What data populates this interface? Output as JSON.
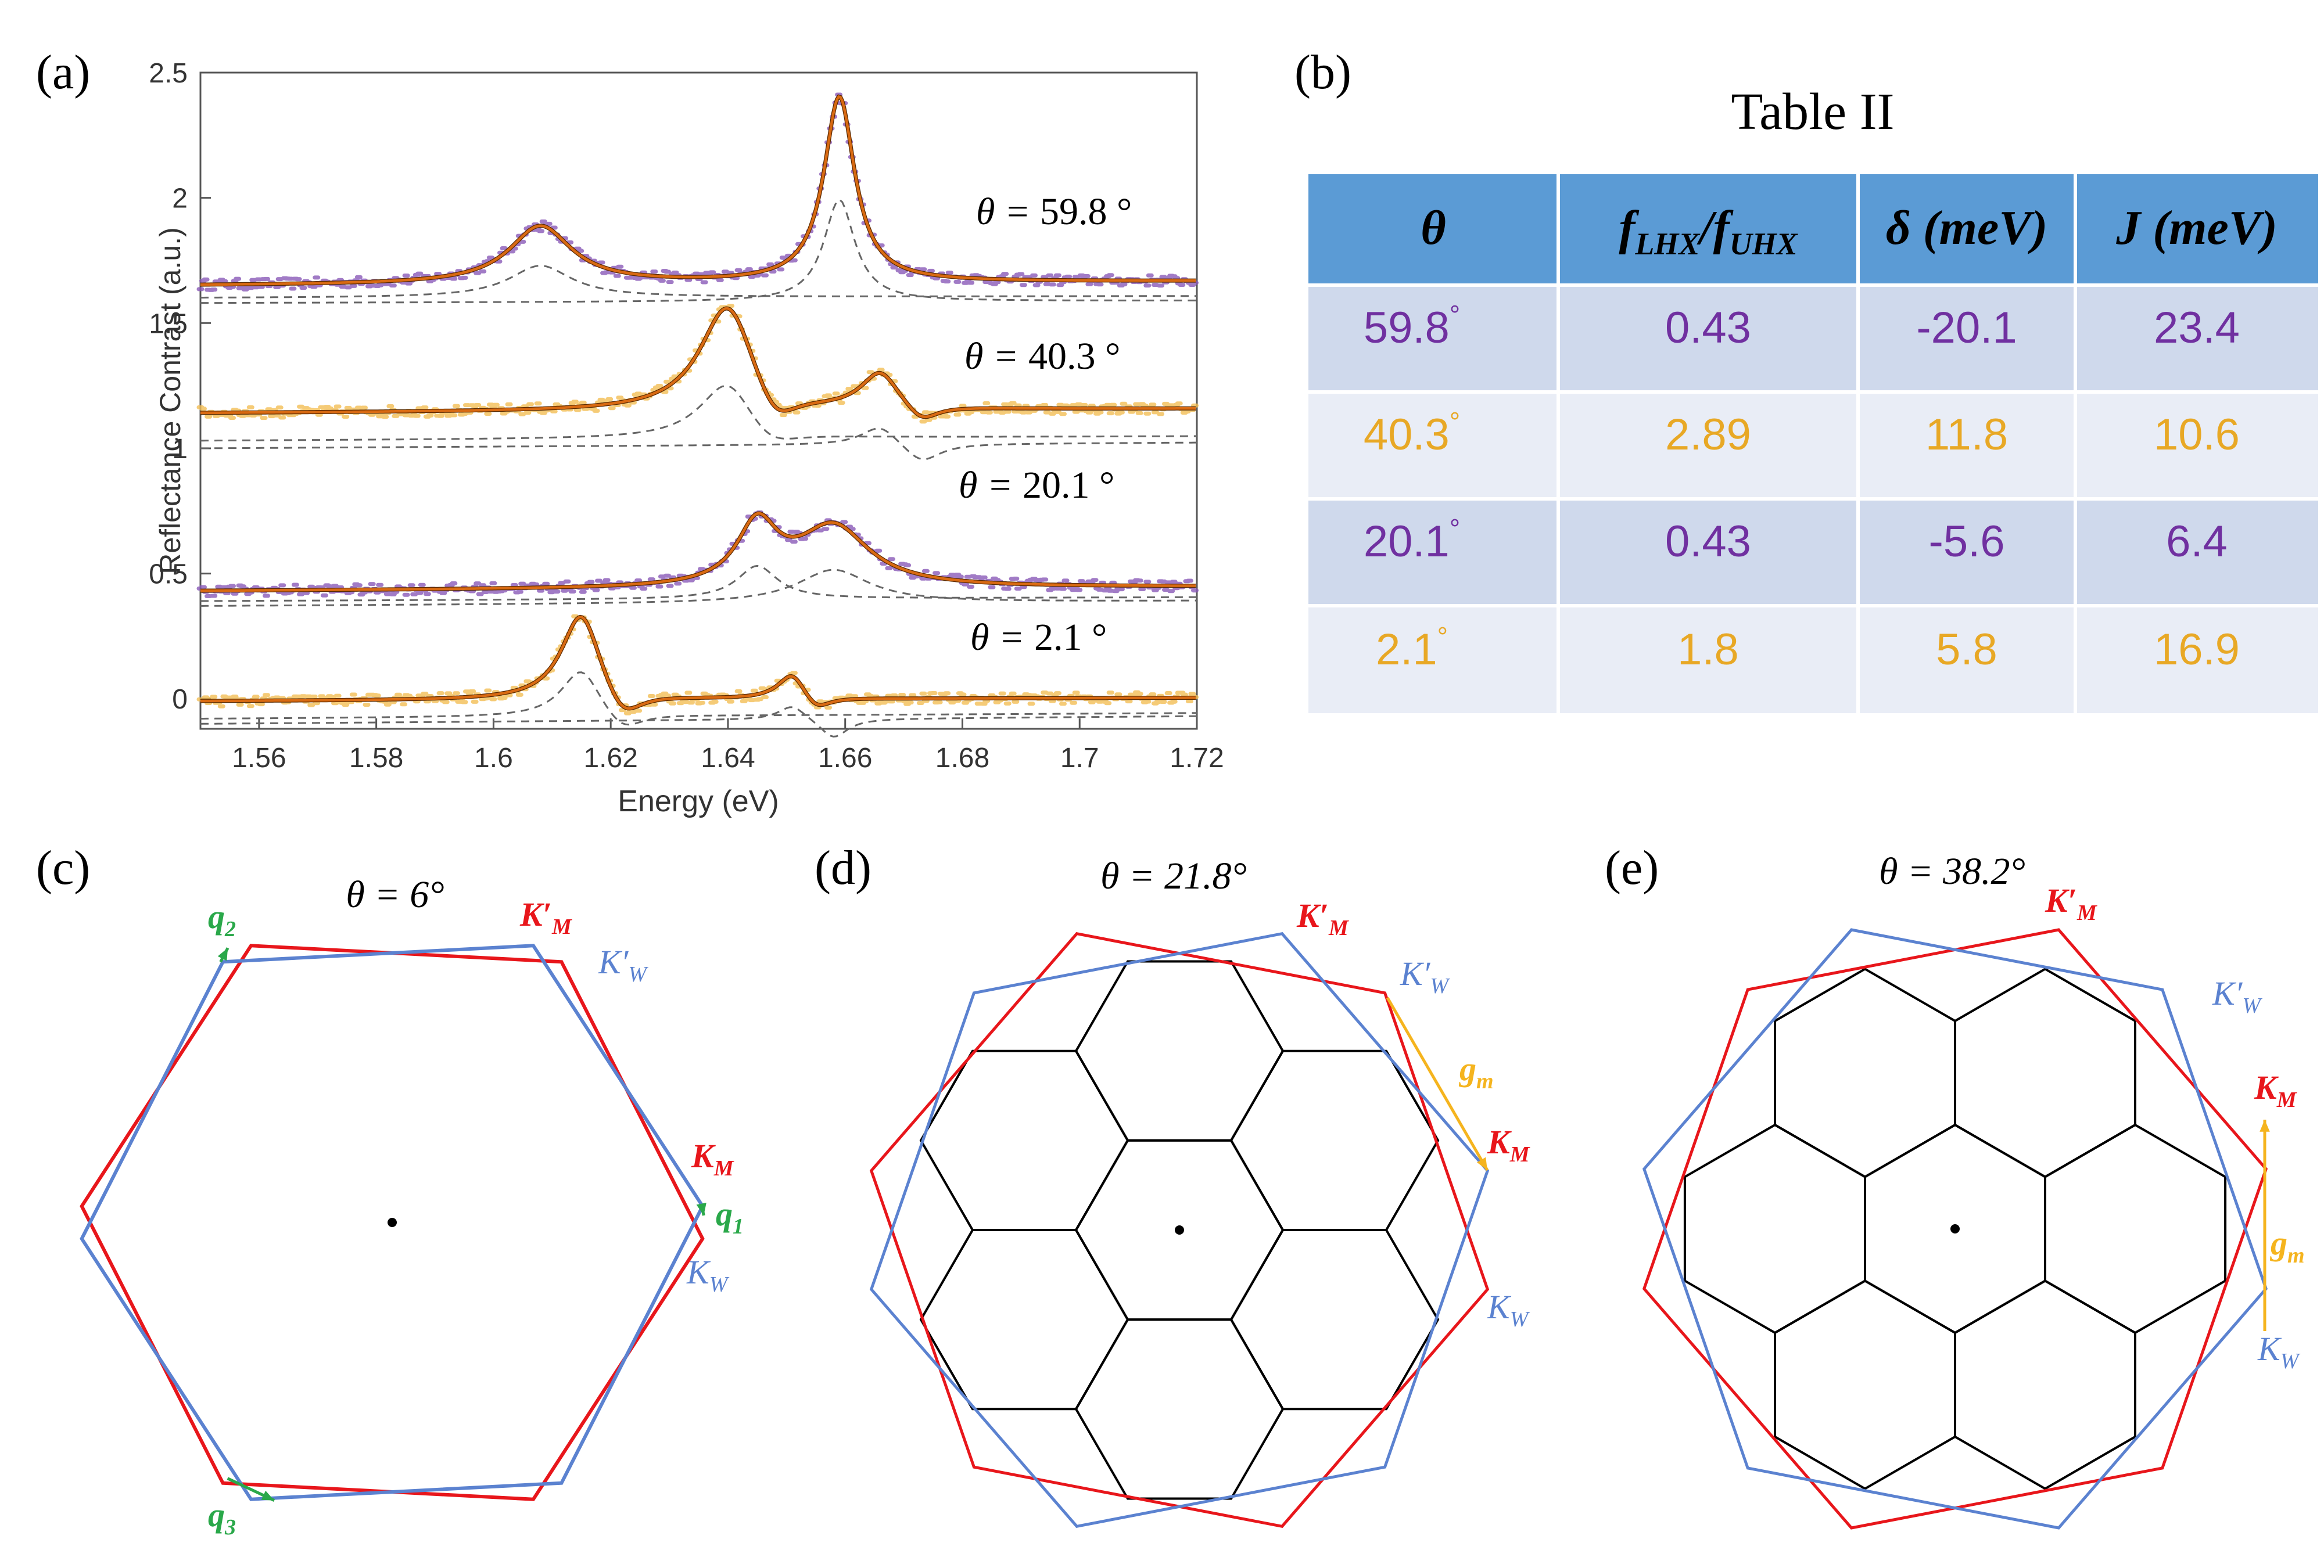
{
  "colors": {
    "purple": "#7030A0",
    "orange_text": "#E8A825",
    "purple_dots": "#8A5AB8",
    "orange_dots": "#F2BE55",
    "fit": "#D96A12",
    "dashed": "#666666",
    "red": "#E8161B",
    "blue": "#5B82D0",
    "green": "#2AA84A",
    "yellow": "#F5B41E",
    "table_head": "#5B9BD5",
    "table_dark": "#CFD9EC",
    "table_light": "#E9EDF6"
  },
  "panel_a": {
    "label": "(a)",
    "xlabel": "Energy (eV)",
    "ylabel": "Reflectance Contrast (a.u.)",
    "angle_prefix": "θ = ",
    "curve_labels": [
      "59.8 °",
      "40.3 °",
      "20.1 °",
      "2.1 °"
    ]
  },
  "chart_data": {
    "type": "line",
    "title": "",
    "xlabel": "Energy (eV)",
    "ylabel": "Reflectance Contrast (a.u.)",
    "xlim": [
      1.55,
      1.72
    ],
    "ylim": [
      -0.12,
      2.5
    ],
    "xticks": [
      1.56,
      1.58,
      1.6,
      1.62,
      1.64,
      1.66,
      1.68,
      1.7,
      1.72
    ],
    "xtick_labels": [
      "1.56",
      "1.58",
      "1.6",
      "1.62",
      "1.64",
      "1.66",
      "1.68",
      "1.7",
      "1.72"
    ],
    "yticks": [
      0,
      0.5,
      1,
      1.5,
      2,
      2.5
    ],
    "ytick_labels": [
      "0",
      "0.5",
      "1",
      "1.5",
      "2",
      "2.5"
    ],
    "series": [
      {
        "name": "θ = 59.8°",
        "dots": "purple",
        "base": 1.65,
        "slope": 0.1,
        "peaks": [
          [
            1.608,
            0.23,
            0.0065
          ],
          [
            1.659,
            0.74,
            0.0032
          ]
        ],
        "guides": [
          {
            "offset": -0.05,
            "slope": 0.15
          },
          {
            "offset": -0.07,
            "slope": 0.18
          }
        ]
      },
      {
        "name": "θ = 40.3°",
        "dots": "orange",
        "base": 1.14,
        "slope": 0.1,
        "peaks": [
          [
            1.64,
            0.44,
            0.0058
          ],
          [
            1.666,
            0.15,
            0.004
          ]
        ],
        "dips": [
          [
            1.648,
            0.14,
            0.0045
          ],
          [
            1.673,
            0.07,
            0.0035
          ]
        ],
        "guides": [
          {
            "offset": -0.11,
            "slope": 0.35
          },
          {
            "offset": -0.14,
            "slope": 0.45
          }
        ]
      },
      {
        "name": "θ = 20.1°",
        "dots": "purple",
        "base": 0.43,
        "slope": 0.1,
        "peaks": [
          [
            1.645,
            0.24,
            0.0042
          ],
          [
            1.658,
            0.24,
            0.0075
          ]
        ],
        "guides": [
          {
            "offset": -0.04,
            "slope": 0.3
          },
          {
            "offset": -0.06,
            "slope": 0.4
          }
        ]
      },
      {
        "name": "θ = 2.1°",
        "dots": "orange",
        "base": -0.01,
        "slope": 0.08,
        "peaks": [
          [
            1.615,
            0.36,
            0.0042
          ],
          [
            1.651,
            0.11,
            0.003
          ]
        ],
        "dips": [
          [
            1.622,
            0.12,
            0.004
          ],
          [
            1.655,
            0.06,
            0.003
          ]
        ],
        "guides": [
          {
            "offset": -0.07,
            "slope": 0.45
          },
          {
            "offset": -0.09,
            "slope": 0.6
          }
        ]
      }
    ]
  },
  "panel_b": {
    "label": "(b)",
    "title": "Table II",
    "headers": [
      "θ",
      "f_LHX/f_UHX",
      "δ (meV)",
      "J (meV)"
    ],
    "rows": [
      {
        "theta": "59.8",
        "ratio": "0.43",
        "delta": "-20.1",
        "J": "23.4",
        "color": "purple"
      },
      {
        "theta": "40.3",
        "ratio": "2.89",
        "delta": "11.8",
        "J": "10.6",
        "color": "orange"
      },
      {
        "theta": "20.1",
        "ratio": "0.43",
        "delta": "-5.6",
        "J": "6.4",
        "color": "purple"
      },
      {
        "theta": "2.1",
        "ratio": "1.8",
        "delta": "5.8",
        "J": "16.9",
        "color": "orange"
      }
    ]
  },
  "panel_c": {
    "label": "(c)",
    "theta_label": "θ = 6°",
    "twist_deg": 6
  },
  "panel_d": {
    "label": "(d)",
    "theta_label": "θ = 21.8°",
    "twist_deg": 21.8,
    "moire_vector": "g_m"
  },
  "panel_e": {
    "label": "(e)",
    "theta_label": "θ = 38.2°",
    "twist_deg": 38.2,
    "moire_vector": "g_m"
  },
  "k_labels": {
    "KM": "K_M",
    "KMp": "K′_M",
    "KW": "K_W",
    "KWp": "K′_W",
    "q1": "q_1",
    "q2": "q_2",
    "q3": "q_3"
  }
}
